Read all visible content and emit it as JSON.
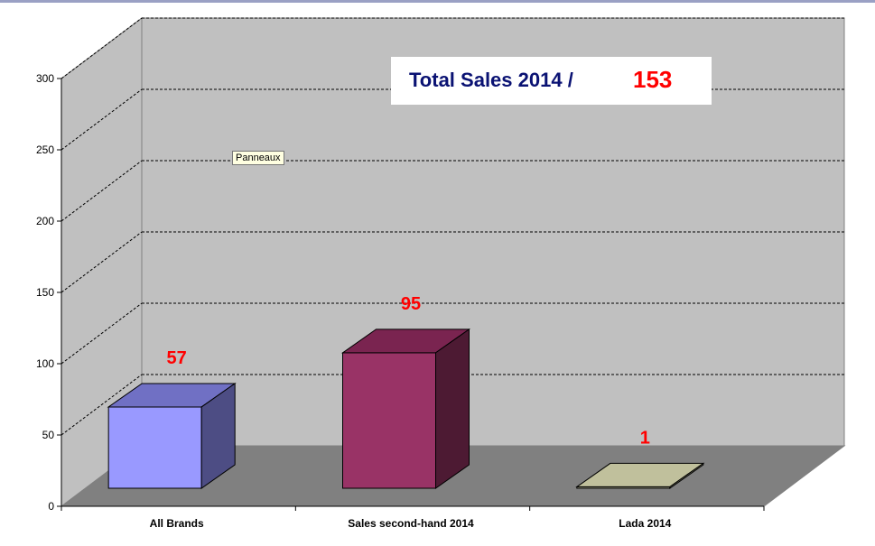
{
  "title": {
    "label": "Total Sales 2014 /",
    "total": "153"
  },
  "tooltip": "Panneaux",
  "colors": {
    "background": "#ffffff",
    "back_wall": "#c0c0c0",
    "floor": "#808080",
    "top_border": "#9aa0c4",
    "value_label": "#ff0000",
    "title_text": "#0a1273"
  },
  "chart_data": {
    "type": "bar",
    "style": "3d",
    "categories": [
      "All Brands",
      "Sales second-hand 2014",
      "Lada 2014"
    ],
    "values": [
      57,
      95,
      1
    ],
    "data_labels": [
      "57",
      "95",
      "1"
    ],
    "bar_colors": [
      {
        "front": "#9999ff",
        "top": "#7070c4",
        "side": "#4d4d84"
      },
      {
        "front": "#993366",
        "top": "#7a2450",
        "side": "#4d1a33"
      },
      {
        "front": "#c0c09c",
        "top": "#c0c09c",
        "side": "#9e9e80"
      }
    ],
    "ylim": [
      0,
      300
    ],
    "yticks": [
      0,
      50,
      100,
      150,
      200,
      250,
      300
    ],
    "grid": true,
    "legend": "none"
  }
}
